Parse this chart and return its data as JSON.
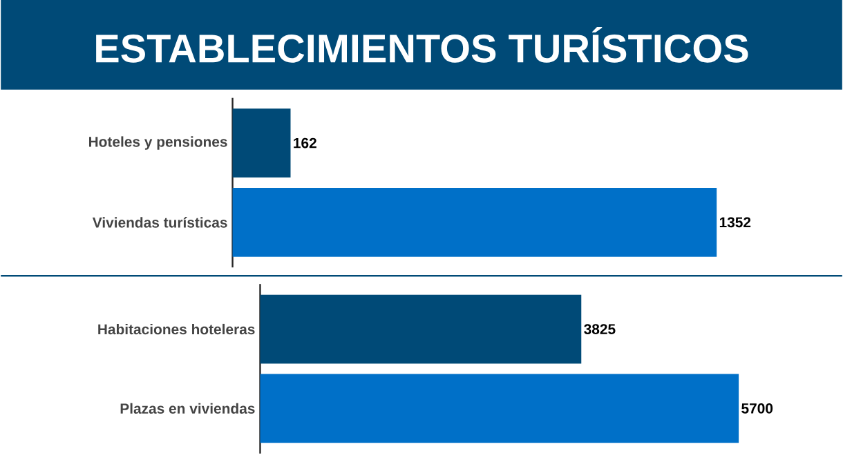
{
  "chart_data": [
    {
      "type": "bar",
      "orientation": "horizontal",
      "title": "ESTABLECIMIENTOS TURÍSTICOS",
      "categories": [
        "Hoteles y pensiones",
        "Viviendas turísticas"
      ],
      "values": [
        162,
        1352
      ],
      "colors": [
        "#004a77",
        "#0070c8"
      ],
      "data_labels": true,
      "tick_labels": "y"
    },
    {
      "type": "bar",
      "orientation": "horizontal",
      "categories": [
        "Habitaciones hoteleras",
        "Plazas en viviendas"
      ],
      "values": [
        3825,
        5700
      ],
      "colors": [
        "#004a77",
        "#0070c8"
      ],
      "data_labels": true,
      "tick_labels": "y"
    }
  ]
}
